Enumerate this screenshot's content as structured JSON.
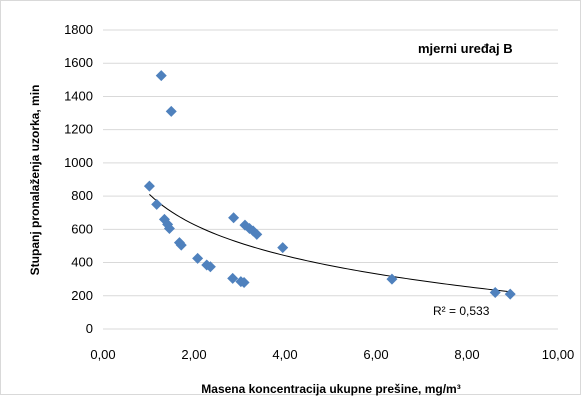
{
  "chart_data": {
    "type": "scatter",
    "title": "",
    "xlabel": "Masena koncentracija  ukupne prešine, mg/m³",
    "ylabel": "Stupanj pronalaženja  uzorka, min",
    "xlim": [
      0,
      10
    ],
    "ylim": [
      0,
      1800
    ],
    "x_ticks": [
      "0,00",
      "2,00",
      "4,00",
      "6,00",
      "8,00",
      "10,00"
    ],
    "y_ticks": [
      "0",
      "200",
      "400",
      "600",
      "800",
      "1000",
      "1200",
      "1400",
      "1600",
      "1800"
    ],
    "grid": "horizontal",
    "marker_color": "#4F81BD",
    "trendline_color": "#000000",
    "annotations": {
      "device_label": "mjerni uređaj B",
      "r_squared": "R² = 0,533"
    },
    "trendline": {
      "type": "logarithmic",
      "a": 816,
      "b": -270
    },
    "points": [
      {
        "x": 1.02,
        "y": 860
      },
      {
        "x": 1.18,
        "y": 750
      },
      {
        "x": 1.28,
        "y": 1525
      },
      {
        "x": 1.35,
        "y": 660
      },
      {
        "x": 1.42,
        "y": 630
      },
      {
        "x": 1.46,
        "y": 605
      },
      {
        "x": 1.5,
        "y": 1310
      },
      {
        "x": 1.68,
        "y": 520
      },
      {
        "x": 1.72,
        "y": 505
      },
      {
        "x": 2.08,
        "y": 425
      },
      {
        "x": 2.28,
        "y": 385
      },
      {
        "x": 2.36,
        "y": 375
      },
      {
        "x": 2.85,
        "y": 305
      },
      {
        "x": 2.87,
        "y": 670
      },
      {
        "x": 3.03,
        "y": 285
      },
      {
        "x": 3.1,
        "y": 280
      },
      {
        "x": 3.12,
        "y": 625
      },
      {
        "x": 3.22,
        "y": 605
      },
      {
        "x": 3.3,
        "y": 590
      },
      {
        "x": 3.38,
        "y": 570
      },
      {
        "x": 3.95,
        "y": 490
      },
      {
        "x": 6.35,
        "y": 300
      },
      {
        "x": 8.62,
        "y": 220
      },
      {
        "x": 8.95,
        "y": 210
      }
    ]
  }
}
